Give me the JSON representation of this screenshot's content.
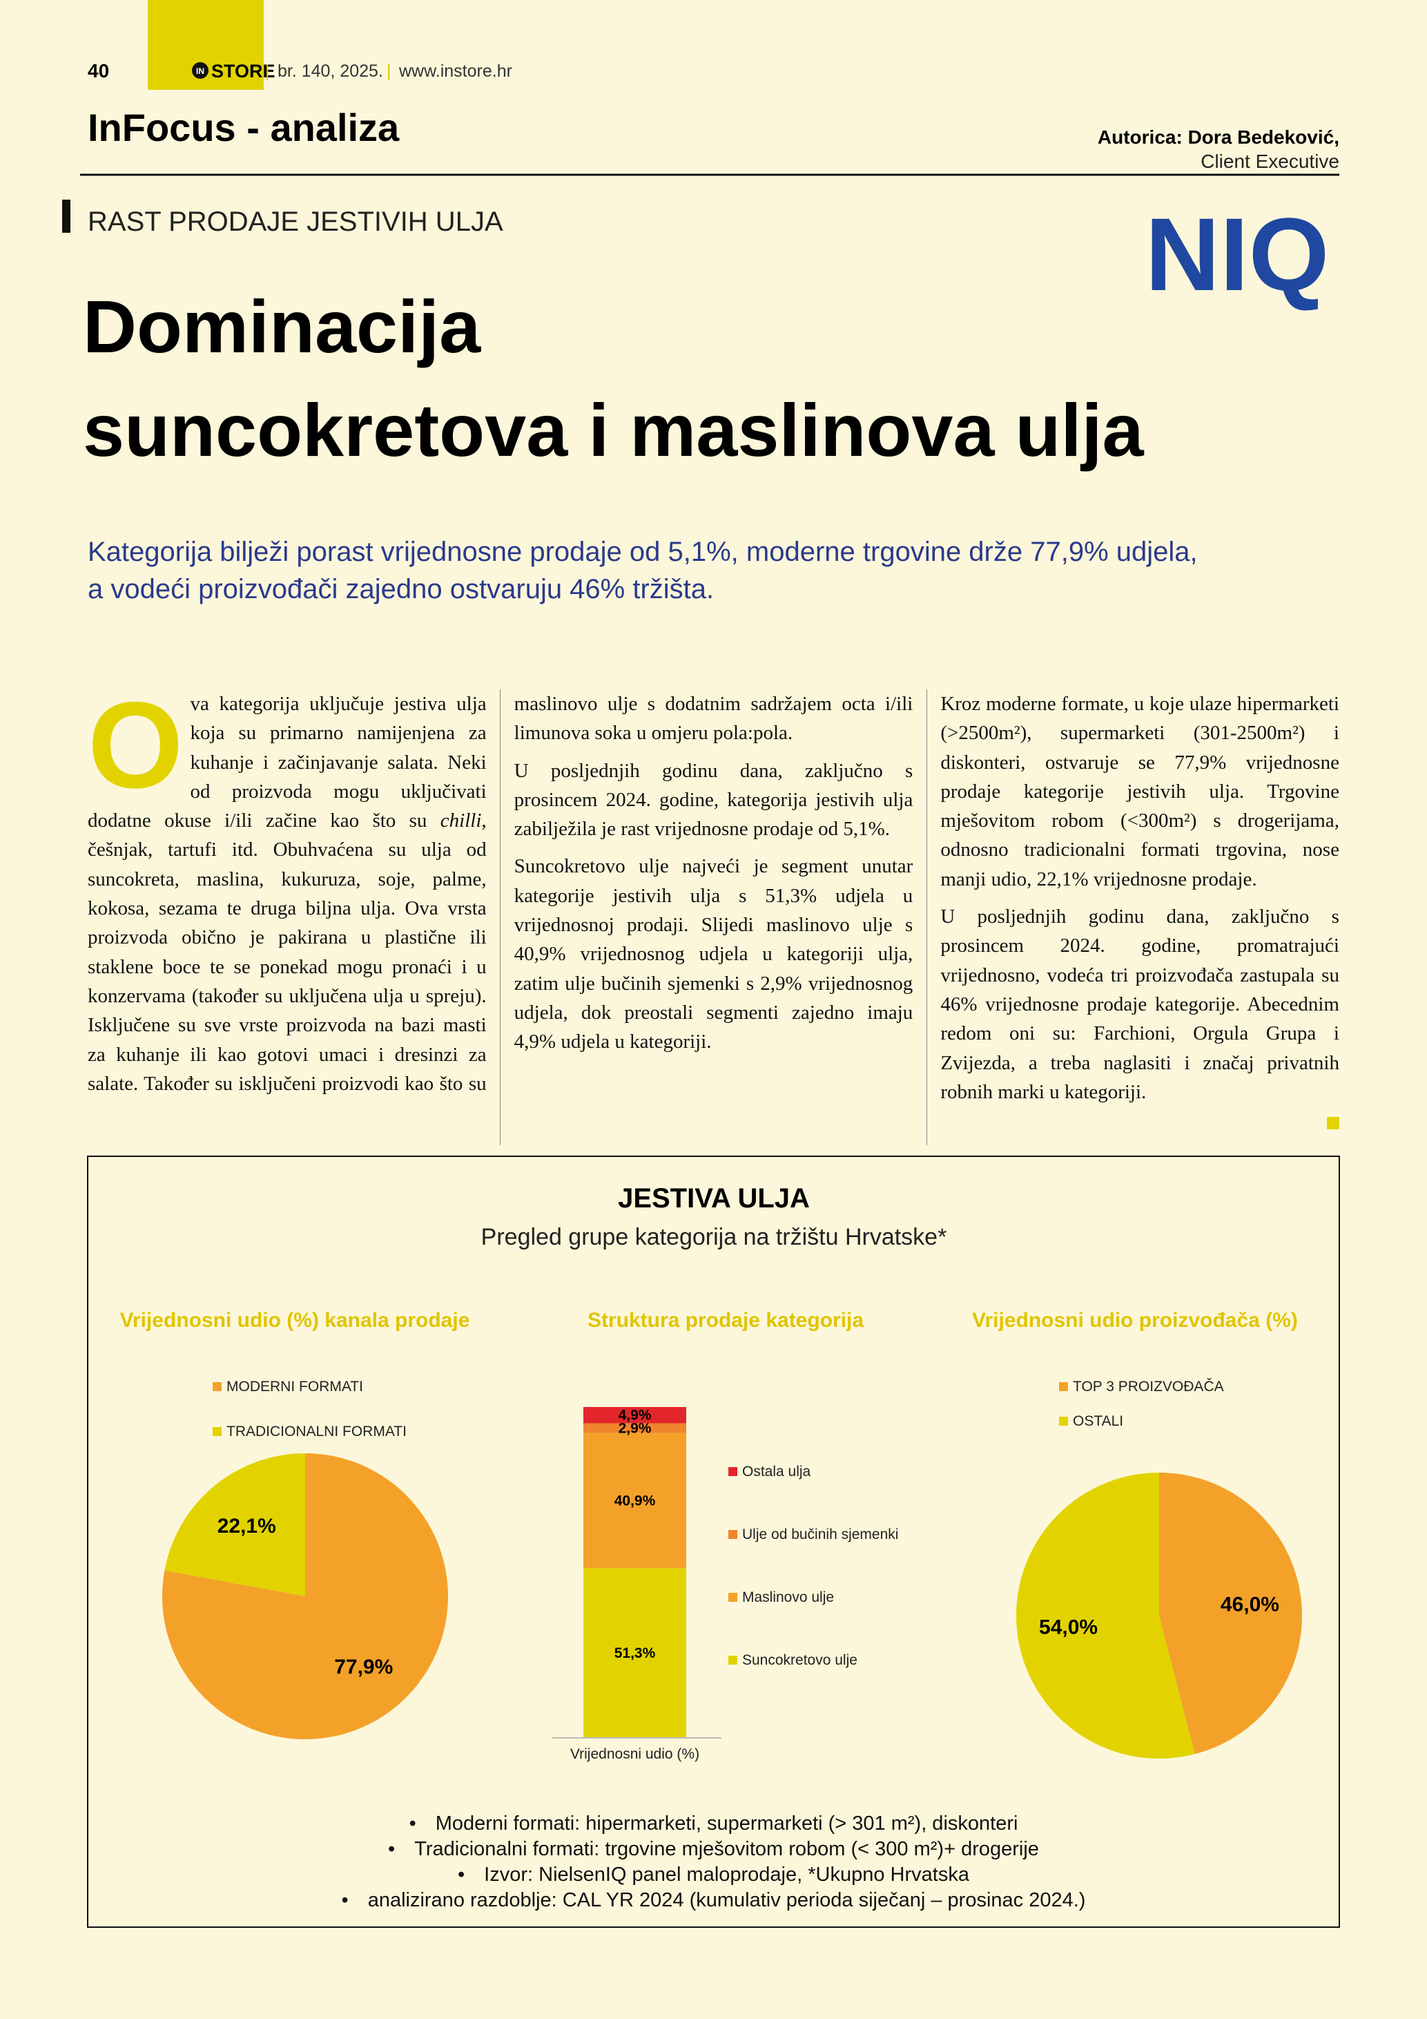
{
  "header": {
    "page_number": "40",
    "logo_mark": "IN",
    "logo": "STORE",
    "issue": "br. 140, 2025.",
    "website": "www.instore.hr",
    "section": "InFocus - analiza",
    "author": "Autorica: Dora Bedeković,",
    "author_role": "Client Executive",
    "brand": "NIQ"
  },
  "article": {
    "kicker": "RAST PRODAJE JESTIVIH ULJA",
    "title": [
      "Dominacija",
      "suncokretova i maslinova ulja"
    ],
    "lead": [
      "Kategorija bilježi porast vrijednosne prodaje od 5,1%, moderne trgovine drže 77,9% udjela,",
      "a vodeći proizvođači zajedno ostvaruju 46% tržišta."
    ],
    "drop_cap": "O",
    "intro": [
      "va kategorija uključuje jestiva ulja koja su primarno namijenjena za kuhanje i začinjavanje salata. Neki od proizvoda mogu uključivati dodatne okuse i/ili začine kao što su ",
      "chilli",
      ", češnjak, tartufi itd. Obuhvaćena su ulja od suncokreta, maslina, kukuruza, soje, palme, kokosa, sezama te druga biljna ulja. Ova vrsta proizvoda obično je pakirana u plastične ili staklene boce te se ponekad mogu pronaći i u konzervama (također su uključena ulja u spreju). Isključene su sve vrste proizvoda na bazi masti za kuhanje ili kao gotovi umaci i dresinzi za salate. Također su isključeni proizvodi kao što su maslinovo ulje s dodatnim sadržajem octa i/ili limunova soka u omjeru pola:pola."
    ],
    "paragraphs": [
      "U posljednjih godinu dana, zaključno s prosincem 2024. godine, kategorija jestivih ulja zabilježila je rast vrijednosne prodaje od 5,1%.",
      "Suncokretovo ulje najveći je segment unutar kategorije jestivih ulja s 51,3% udjela u vrijednosnoj prodaji. Slijedi maslinovo ulje s 40,9% vrijednosnog udjela u kategoriji ulja, zatim ulje bučinih sjemenki s 2,9% vrijednosnog udjela, dok preostali segmenti zajedno imaju 4,9% udjela u kategoriji.",
      "Kroz moderne formate, u koje ulaze hipermarketi (>2500m²), supermarketi (301-2500m²) i diskonteri, ostvaruje se 77,9% vrijednosne prodaje kategorije jestivih ulja. Trgovine mješovitom robom (<300m²) s drogerijama, odnosno tradicionalni formati trgovina, nose manji udio, 22,1% vrijednosne prodaje.",
      "U posljednjih godinu dana, zaključno s prosincem 2024. godine, promatrajući vrijednosno, vodeća tri proizvođača zastupala su 46% vrijednosne prodaje kategorije. Abecednim redom oni su: Farchioni, Orgula Grupa i Zvijezda, a treba naglasiti i značaj privatnih robnih marki u kategoriji."
    ]
  },
  "figure": {
    "title": "JESTIVA ULJA",
    "subtitle": "Pregled grupe kategorija na tržištu Hrvatske*",
    "notes": [
      "Moderni formati: hipermarketi, supermarketi (> 301 m²), diskonteri",
      "Tradicionalni formati: trgovine mješovitom robom (< 300 m²)+ drogerije",
      "Izvor: NielsenIQ panel maloprodaje, *Ukupno Hrvatska",
      "analizirano razdoblje: CAL YR 2024 (kumulativ perioda siječanj – prosinac 2024.)"
    ]
  },
  "chart_data": [
    {
      "type": "pie",
      "title": "Vrijednosni udio (%) kanala prodaje",
      "categories": [
        "MODERNI FORMATI",
        "TRADICIONALNI FORMATI"
      ],
      "values": [
        77.9,
        22.1
      ],
      "value_labels": [
        "77,9%",
        "22,1%"
      ],
      "colors": [
        "#f4a12a",
        "#e2d300"
      ]
    },
    {
      "type": "bar",
      "stacked": true,
      "title": "Struktura prodaje kategorija",
      "categories": [
        "Vrijednosni udio (%)"
      ],
      "ylim": [
        0,
        100
      ],
      "series": [
        {
          "name": "Suncokretovo ulje",
          "color": "#e2d300",
          "values": [
            51.3
          ],
          "value_labels": [
            "51,3%"
          ]
        },
        {
          "name": "Maslinovo ulje",
          "color": "#f4a12a",
          "values": [
            40.9
          ],
          "value_labels": [
            "40,9%"
          ]
        },
        {
          "name": "Ulje od bučinih sjemenki",
          "color": "#f0842c",
          "values": [
            2.9
          ],
          "value_labels": [
            "2,9%"
          ]
        },
        {
          "name": "Ostala ulja",
          "color": "#e3262b",
          "values": [
            4.9
          ],
          "value_labels": [
            "4,9%"
          ]
        }
      ]
    },
    {
      "type": "pie",
      "title": "Vrijednosni udio proizvođača (%)",
      "categories": [
        "TOP 3 PROIZVOĐAČA",
        "OSTALI"
      ],
      "values": [
        46.0,
        54.0
      ],
      "value_labels": [
        "46,0%",
        "54,0%"
      ],
      "colors": [
        "#f4a12a",
        "#e2d300"
      ]
    }
  ]
}
